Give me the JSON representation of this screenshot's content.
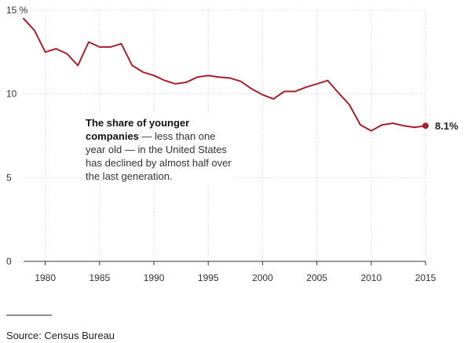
{
  "chart_data": {
    "type": "line",
    "title": "",
    "xlabel": "",
    "ylabel": "",
    "ylim": [
      0,
      15
    ],
    "xlim": [
      1978,
      2015
    ],
    "y_ticks": [
      {
        "value": 0,
        "label": "0"
      },
      {
        "value": 5,
        "label": "5"
      },
      {
        "value": 10,
        "label": "10"
      },
      {
        "value": 15,
        "label": "15 %"
      }
    ],
    "x_ticks": [
      {
        "value": 1980,
        "label": "1980"
      },
      {
        "value": 1985,
        "label": "1985"
      },
      {
        "value": 1990,
        "label": "1990"
      },
      {
        "value": 1995,
        "label": "1995"
      },
      {
        "value": 2000,
        "label": "2000"
      },
      {
        "value": 2005,
        "label": "2005"
      },
      {
        "value": 2010,
        "label": "2010"
      },
      {
        "value": 2015,
        "label": "2015"
      }
    ],
    "grid": "vertical-dotted-at-x-ticks",
    "line_color": "#a3202e",
    "series": [
      {
        "x": [
          1978,
          1979,
          1980,
          1981,
          1982,
          1983,
          1984,
          1985,
          1986,
          1987,
          1988,
          1989,
          1990,
          1991,
          1992,
          1993,
          1994,
          1995,
          1996,
          1997,
          1998,
          1999,
          2000,
          2001,
          2002,
          2003,
          2004,
          2005,
          2006,
          2007,
          2008,
          2009,
          2010,
          2011,
          2012,
          2013,
          2014,
          2015
        ],
        "values": [
          14.5,
          13.8,
          12.5,
          12.7,
          12.4,
          11.7,
          13.1,
          12.8,
          12.8,
          13.0,
          11.7,
          11.3,
          11.1,
          10.8,
          10.6,
          10.7,
          11.0,
          11.1,
          11.0,
          10.95,
          10.75,
          10.3,
          9.95,
          9.7,
          10.15,
          10.15,
          10.4,
          10.6,
          10.8,
          10.05,
          9.35,
          8.15,
          7.8,
          8.15,
          8.25,
          8.1,
          8.0,
          8.1
        ]
      }
    ],
    "end_label": "8.1%",
    "annotation": {
      "bold": "The share of younger companies",
      "text": " — less than one year old — in the United States has declined by almost half over the last generation."
    }
  },
  "source": "Source: Census Bureau"
}
